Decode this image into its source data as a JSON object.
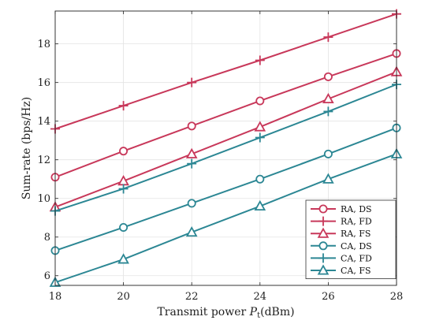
{
  "chart_data": {
    "type": "line",
    "title": "",
    "xlabel": "Transmit power $P_t$(dBm)",
    "xlabel_main": "Transmit power ",
    "xlabel_symbol": "P",
    "xlabel_sub": "t",
    "xlabel_unit": "(dBm)",
    "ylabel": "Sum-rate (bps/Hz)",
    "x": [
      18,
      20,
      22,
      24,
      26,
      28
    ],
    "xlim": [
      18,
      28
    ],
    "ylim": [
      5.5,
      19.7
    ],
    "xticks": [
      18,
      20,
      22,
      24,
      26,
      28
    ],
    "yticks": [
      6,
      8,
      10,
      12,
      14,
      16,
      18
    ],
    "grid": true,
    "legend_position": "bottom-right",
    "series": [
      {
        "name": "RA, DS",
        "color": "#c8385a",
        "marker": "circle",
        "values": [
          11.1,
          12.45,
          13.75,
          15.05,
          16.3,
          17.5
        ]
      },
      {
        "name": "RA, FD",
        "color": "#c8385a",
        "marker": "plus",
        "values": [
          13.6,
          14.8,
          16.0,
          17.15,
          18.35,
          19.55
        ]
      },
      {
        "name": "RA, FS",
        "color": "#c8385a",
        "marker": "triangle",
        "values": [
          9.55,
          10.9,
          12.3,
          13.7,
          15.15,
          16.55
        ]
      },
      {
        "name": "CA, DS",
        "color": "#2c8794",
        "marker": "circle",
        "values": [
          7.3,
          8.5,
          9.75,
          11.0,
          12.3,
          13.65
        ]
      },
      {
        "name": "CA, FD",
        "color": "#2c8794",
        "marker": "plus",
        "values": [
          9.35,
          10.5,
          11.8,
          13.15,
          14.5,
          15.9
        ]
      },
      {
        "name": "CA, FS",
        "color": "#2c8794",
        "marker": "triangle",
        "values": [
          5.65,
          6.85,
          8.25,
          9.6,
          11.0,
          12.3
        ]
      }
    ]
  }
}
